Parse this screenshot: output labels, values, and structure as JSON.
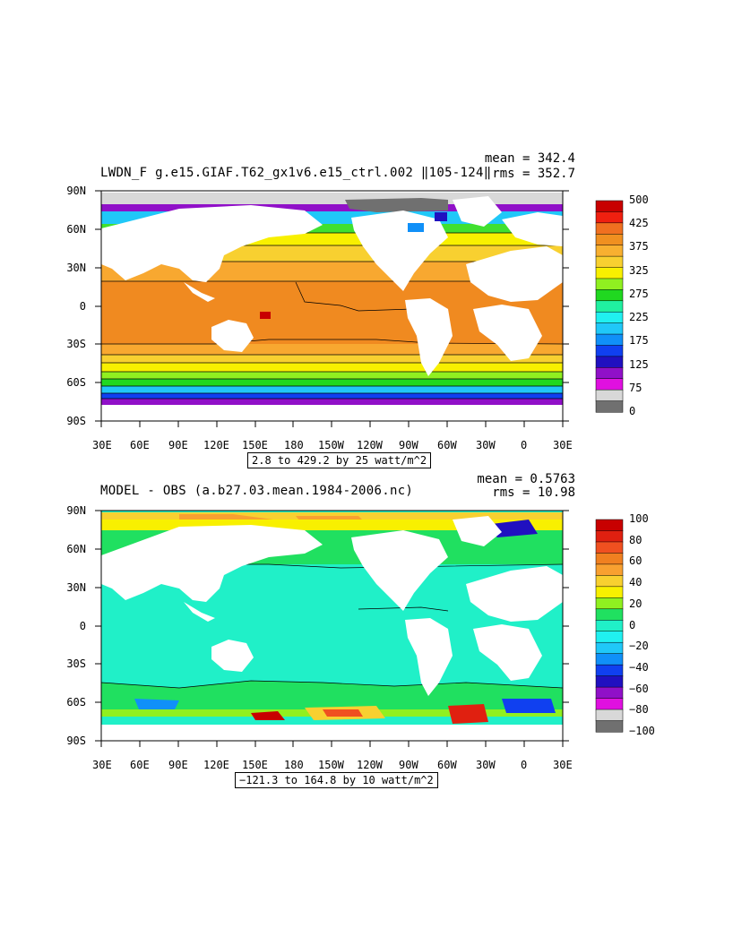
{
  "x_ticks": [
    "30E",
    "60E",
    "90E",
    "120E",
    "150E",
    "180",
    "150W",
    "120W",
    "90W",
    "60W",
    "30W",
    "0",
    "30E"
  ],
  "y_ticks": [
    "90N",
    "60N",
    "30N",
    "0",
    "30S",
    "60S",
    "90S"
  ],
  "panels": [
    {
      "title": "LWDN_F g.e15.GIAF.T62_gx1v6.e15_ctrl.002 ‖105-124‖",
      "mean": "mean = 342.4",
      "rms": "rms = 352.7",
      "range_text": "2.8 to 429.2 by 25 watt/m^2",
      "colorbar_labels": [
        "500",
        "425",
        "375",
        "325",
        "275",
        "225",
        "175",
        "125",
        "75",
        "0"
      ],
      "colorbar_colors": [
        "#c80000",
        "#f02010",
        "#f07020",
        "#f09020",
        "#f8b030",
        "#f8d030",
        "#f8f000",
        "#90f020",
        "#20d820",
        "#20f0a0",
        "#20f0f0",
        "#20c8f8",
        "#1090f8",
        "#1040f0",
        "#2010c0",
        "#9010c8",
        "#e010e0",
        "#d8d8d8",
        "#707070"
      ]
    },
    {
      "title": "MODEL - OBS (a.b27.03.mean.1984-2006.nc)",
      "mean": "mean = 0.5763",
      "rms": "rms = 10.98",
      "range_text": "−121.3 to 164.8 by 10 watt/m^2",
      "colorbar_labels": [
        "100",
        "80",
        "60",
        "40",
        "20",
        "0",
        "−20",
        "−40",
        "−60",
        "−80",
        "−100"
      ],
      "colorbar_colors": [
        "#c80000",
        "#e02010",
        "#f05020",
        "#f08020",
        "#f8a030",
        "#f8d030",
        "#f8f000",
        "#90f020",
        "#20e060",
        "#20f0c8",
        "#20f0f0",
        "#20c8f8",
        "#1090f8",
        "#1040f0",
        "#2010c0",
        "#9010c8",
        "#e010e0",
        "#d8d8d8",
        "#707070"
      ]
    }
  ],
  "colors": {
    "land": "#ffffff",
    "top_tropics": "#f08a20",
    "top_subtropics": "#f8a830",
    "top_midlat": "#f8d030",
    "top_yellow": "#f8f000",
    "top_green": "#40e030",
    "top_south_green": "#20c820",
    "anom_ocean": "#20f0c8",
    "anom_green": "#20e060"
  }
}
